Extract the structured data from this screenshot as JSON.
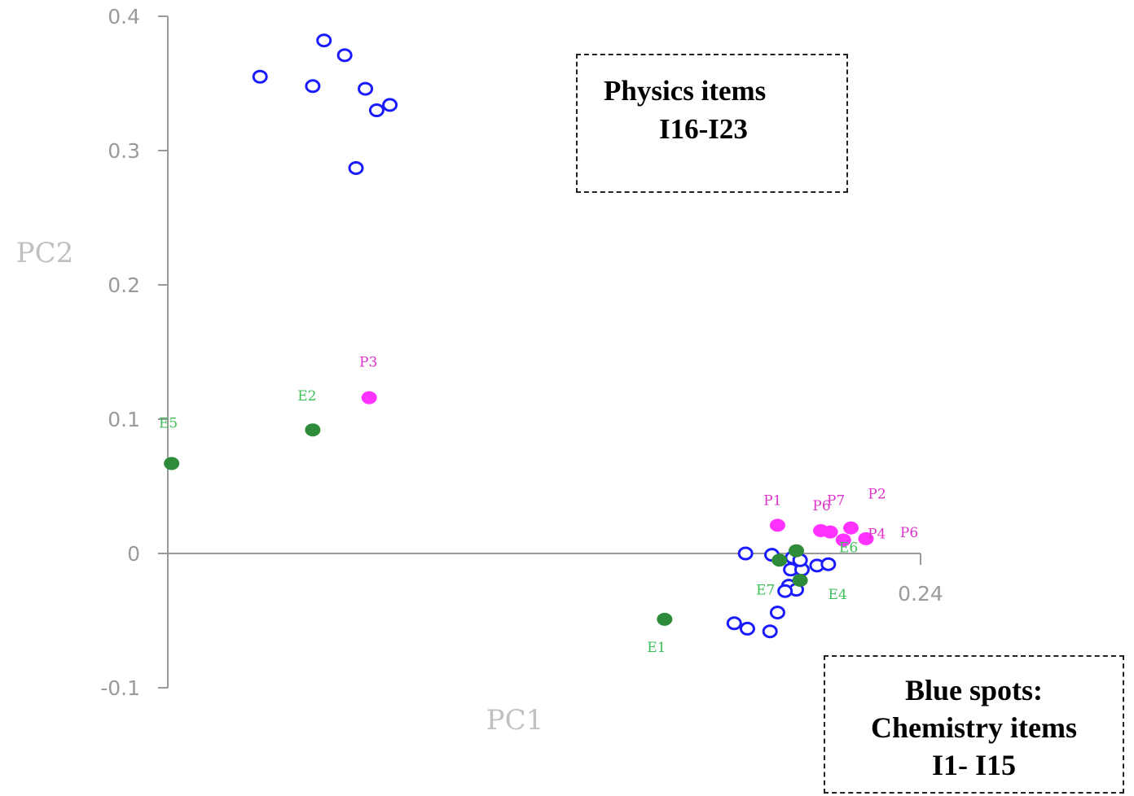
{
  "chart_data": {
    "type": "scatter",
    "xlabel": "PC1",
    "ylabel": "PC2",
    "xlim": [
      -0.16,
      0.24
    ],
    "ylim": [
      -0.1,
      0.4
    ],
    "y_ticks": [
      "0.4",
      "0.3",
      "0.2",
      "0.1",
      "0",
      "-0.1"
    ],
    "x_tick_label": "0.24",
    "colors": {
      "chemistry": "#1a1aff",
      "physics": "#ff33ff",
      "e_items": "#2e8b3a",
      "e_label": "#3fbf5a",
      "p_label": "#dd33cc",
      "axis": "#999999"
    },
    "series": [
      {
        "key": "chemistry",
        "marker": "hollow-circle",
        "points": [
          {
            "x": 0.147,
            "y": 0.0
          },
          {
            "x": 0.161,
            "y": -0.001
          },
          {
            "x": 0.172,
            "y": -0.003
          },
          {
            "x": 0.171,
            "y": -0.012
          },
          {
            "x": 0.177,
            "y": -0.012
          },
          {
            "x": 0.185,
            "y": -0.009
          },
          {
            "x": 0.191,
            "y": -0.008
          },
          {
            "x": 0.17,
            "y": -0.024
          },
          {
            "x": 0.174,
            "y": -0.027
          },
          {
            "x": 0.168,
            "y": -0.028
          },
          {
            "x": 0.164,
            "y": -0.044
          },
          {
            "x": 0.141,
            "y": -0.052
          },
          {
            "x": 0.148,
            "y": -0.056
          },
          {
            "x": 0.16,
            "y": -0.058
          },
          {
            "x": 0.176,
            "y": -0.005
          }
        ]
      },
      {
        "key": "physics",
        "marker": "hollow-circle",
        "points": [
          {
            "x": -0.077,
            "y": 0.382
          },
          {
            "x": -0.066,
            "y": 0.371
          },
          {
            "x": -0.111,
            "y": 0.355
          },
          {
            "x": -0.083,
            "y": 0.348
          },
          {
            "x": -0.055,
            "y": 0.346
          },
          {
            "x": -0.049,
            "y": 0.33
          },
          {
            "x": -0.042,
            "y": 0.334
          },
          {
            "x": -0.06,
            "y": 0.287
          }
        ]
      },
      {
        "key": "e_items",
        "marker": "filled-circle",
        "points": [
          {
            "x": 0.104,
            "y": -0.049,
            "label": "E1"
          },
          {
            "x": -0.083,
            "y": 0.092,
            "label": "E2"
          },
          {
            "x": -0.158,
            "y": 0.067,
            "label": "E5"
          },
          {
            "x": 0.165,
            "y": -0.005,
            "label": "E7"
          },
          {
            "x": 0.176,
            "y": -0.02,
            "label": "E4"
          },
          {
            "x": 0.174,
            "y": 0.002,
            "label": "E6"
          }
        ]
      },
      {
        "key": "p_items",
        "marker": "filled-circle",
        "points": [
          {
            "x": -0.053,
            "y": 0.116,
            "label": "P3"
          },
          {
            "x": 0.164,
            "y": 0.021,
            "label": "P1"
          },
          {
            "x": 0.187,
            "y": 0.017,
            "label": "P6"
          },
          {
            "x": 0.192,
            "y": 0.016,
            "label": "P7"
          },
          {
            "x": 0.203,
            "y": 0.019,
            "label": "P2"
          },
          {
            "x": 0.199,
            "y": 0.01,
            "label": "P4"
          },
          {
            "x": 0.211,
            "y": 0.011,
            "label": "P6"
          }
        ]
      }
    ],
    "annotations": {
      "physics_box": [
        "Physics items",
        "I16-I23"
      ],
      "blue_box": [
        "Blue spots:",
        "Chemistry items",
        "I1- I15"
      ]
    }
  }
}
